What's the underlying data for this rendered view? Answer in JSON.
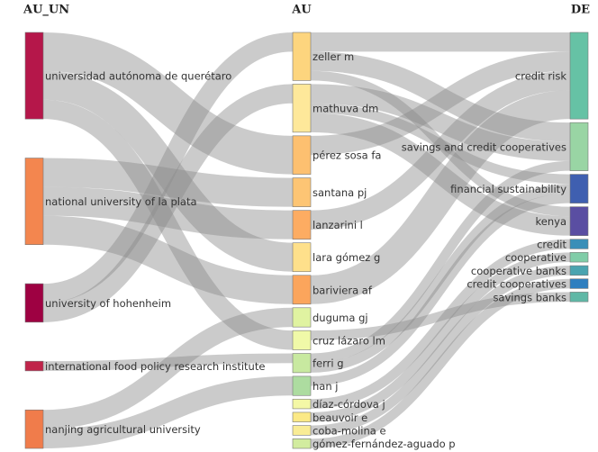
{
  "chart_data": {
    "type": "sankey",
    "columns": [
      {
        "title": "AU_UN",
        "nodes": [
          {
            "name": "universidad autónoma de querétaro",
            "color": "#b5174a"
          },
          {
            "name": "national university of la plata",
            "color": "#f3864f"
          },
          {
            "name": "university of hohenheim",
            "color": "#9e0142"
          },
          {
            "name": "international food policy research institute",
            "color": "#c0244a"
          },
          {
            "name": "nanjing agricultural university",
            "color": "#f07c4b"
          }
        ]
      },
      {
        "title": "AU",
        "nodes": [
          {
            "name": "zeller m",
            "color": "#fdd57e"
          },
          {
            "name": "mathuva dm",
            "color": "#fee89a"
          },
          {
            "name": "pérez sosa fa",
            "color": "#fdc070"
          },
          {
            "name": "santana pj",
            "color": "#fdc574"
          },
          {
            "name": "lanzarini l",
            "color": "#fdac62"
          },
          {
            "name": "lara gómez g",
            "color": "#fee08b"
          },
          {
            "name": "bariviera af",
            "color": "#fba55c"
          },
          {
            "name": "duguma gj",
            "color": "#e0f3a1"
          },
          {
            "name": "cruz lázaro lm",
            "color": "#f0f9a8"
          },
          {
            "name": "ferri g",
            "color": "#c8e9a0"
          },
          {
            "name": "han j",
            "color": "#addca0"
          },
          {
            "name": "díaz-córdova j",
            "color": "#f4f8a6"
          },
          {
            "name": "beauvoir e",
            "color": "#fbe986"
          },
          {
            "name": "coba-molina e",
            "color": "#f9ec95"
          },
          {
            "name": "gómez-fernández-aguado p",
            "color": "#d2ec9f"
          }
        ]
      },
      {
        "title": "DE",
        "nodes": [
          {
            "name": "credit risk",
            "color": "#66c2a5"
          },
          {
            "name": "savings and credit cooperatives",
            "color": "#99d5a4"
          },
          {
            "name": "financial sustainability",
            "color": "#3f5fb0"
          },
          {
            "name": "kenya",
            "color": "#5a4ea2"
          },
          {
            "name": "credit",
            "color": "#3a8fb8"
          },
          {
            "name": "cooperative",
            "color": "#80cda8"
          },
          {
            "name": "cooperative banks",
            "color": "#4aa4b0"
          },
          {
            "name": "credit cooperatives",
            "color": "#2f7fbf"
          },
          {
            "name": "savings banks",
            "color": "#5fb8a6"
          }
        ]
      }
    ],
    "links": [
      {
        "source": [
          0,
          0
        ],
        "target": [
          1,
          2
        ],
        "value": 4
      },
      {
        "source": [
          0,
          0
        ],
        "target": [
          1,
          5
        ],
        "value": 3
      },
      {
        "source": [
          0,
          0
        ],
        "target": [
          1,
          8
        ],
        "value": 2
      },
      {
        "source": [
          0,
          1
        ],
        "target": [
          1,
          3
        ],
        "value": 3
      },
      {
        "source": [
          0,
          1
        ],
        "target": [
          1,
          4
        ],
        "value": 3
      },
      {
        "source": [
          0,
          1
        ],
        "target": [
          1,
          6
        ],
        "value": 3
      },
      {
        "source": [
          0,
          2
        ],
        "target": [
          1,
          0
        ],
        "value": 2
      },
      {
        "source": [
          0,
          2
        ],
        "target": [
          1,
          1
        ],
        "value": 2
      },
      {
        "source": [
          0,
          3
        ],
        "target": [
          1,
          9
        ],
        "value": 1
      },
      {
        "source": [
          0,
          4
        ],
        "target": [
          1,
          7
        ],
        "value": 2
      },
      {
        "source": [
          0,
          4
        ],
        "target": [
          1,
          10
        ],
        "value": 2
      },
      {
        "source": [
          1,
          0
        ],
        "target": [
          2,
          0
        ],
        "value": 2
      },
      {
        "source": [
          1,
          0
        ],
        "target": [
          2,
          1
        ],
        "value": 2
      },
      {
        "source": [
          1,
          0
        ],
        "target": [
          2,
          3
        ],
        "value": 1
      },
      {
        "source": [
          1,
          1
        ],
        "target": [
          2,
          1
        ],
        "value": 2
      },
      {
        "source": [
          1,
          1
        ],
        "target": [
          2,
          2
        ],
        "value": 1
      },
      {
        "source": [
          1,
          1
        ],
        "target": [
          2,
          3
        ],
        "value": 2
      },
      {
        "source": [
          1,
          2
        ],
        "target": [
          2,
          0
        ],
        "value": 2
      },
      {
        "source": [
          1,
          4
        ],
        "target": [
          2,
          0
        ],
        "value": 2
      },
      {
        "source": [
          1,
          6
        ],
        "target": [
          2,
          0
        ],
        "value": 3
      },
      {
        "source": [
          1,
          8
        ],
        "target": [
          2,
          8
        ],
        "value": 1
      },
      {
        "source": [
          1,
          9
        ],
        "target": [
          2,
          1
        ],
        "value": 1
      },
      {
        "source": [
          1,
          9
        ],
        "target": [
          2,
          2
        ],
        "value": 1
      },
      {
        "source": [
          1,
          10
        ],
        "target": [
          2,
          2
        ],
        "value": 1
      },
      {
        "source": [
          1,
          11
        ],
        "target": [
          2,
          4
        ],
        "value": 1
      },
      {
        "source": [
          1,
          12
        ],
        "target": [
          2,
          5
        ],
        "value": 1
      },
      {
        "source": [
          1,
          13
        ],
        "target": [
          2,
          6
        ],
        "value": 1
      },
      {
        "source": [
          1,
          14
        ],
        "target": [
          2,
          7
        ],
        "value": 1
      }
    ]
  }
}
